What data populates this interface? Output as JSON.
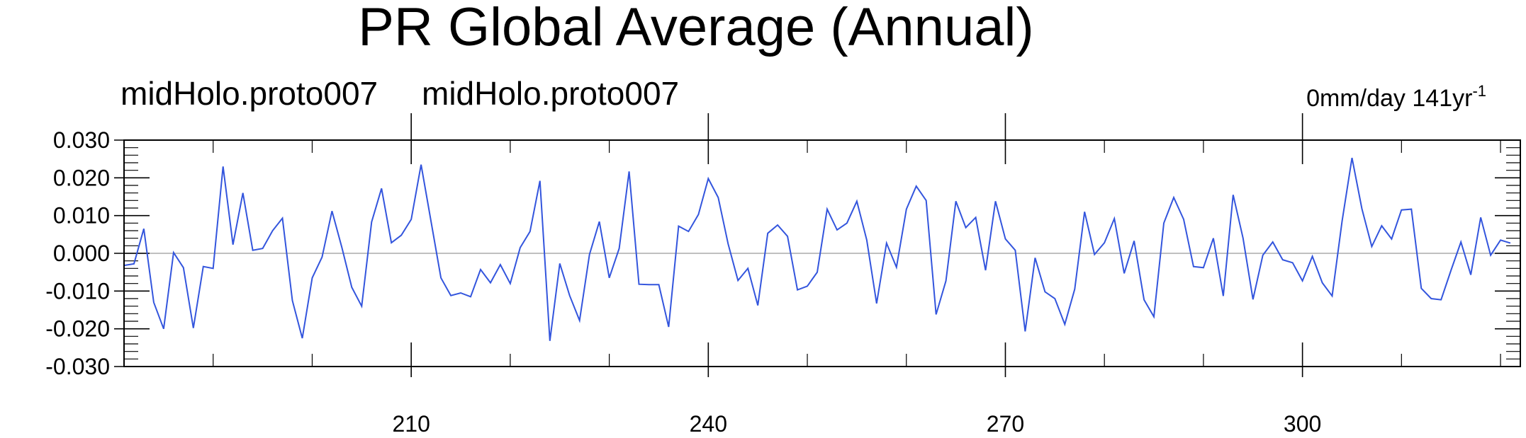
{
  "chart_data": {
    "type": "line",
    "title": "PR Global Average (Annual)",
    "left_subtitle": "midHolo.proto007",
    "center_subtitle": "midHolo.proto007",
    "right_label": "0mm/day 141yr",
    "right_label_sup": "-1",
    "xlim": [
      181,
      322
    ],
    "ylim": [
      -0.03,
      0.03
    ],
    "x_ticks": [
      210,
      240,
      270,
      300
    ],
    "x_tick_labels": [
      "210",
      "240",
      "270",
      "300"
    ],
    "x_minor_ticks": [
      190,
      200,
      220,
      230,
      250,
      260,
      280,
      290,
      310,
      320
    ],
    "y_ticks": [
      -0.03,
      -0.02,
      -0.01,
      0.0,
      0.01,
      0.02,
      0.03
    ],
    "y_tick_labels": [
      "-0.030",
      "-0.020",
      "-0.010",
      "0.000",
      "0.010",
      "0.020",
      "0.030"
    ],
    "reference_line": 0.0,
    "line_color": "#3355dd",
    "reference_color": "#c0c0c0",
    "series": [
      {
        "x_start": 181,
        "values": [
          -0.0032,
          -0.0028,
          0.0065,
          -0.013,
          -0.02,
          0.0002,
          -0.0038,
          -0.0198,
          -0.0035,
          -0.004,
          0.023,
          0.0023,
          0.016,
          0.0008,
          0.0013,
          0.006,
          0.0093,
          -0.0125,
          -0.0225,
          -0.0065,
          -0.001,
          0.0112,
          0.0015,
          -0.009,
          -0.014,
          0.0083,
          0.0172,
          0.0028,
          0.0048,
          0.009,
          0.0235,
          0.0085,
          -0.0065,
          -0.0112,
          -0.0105,
          -0.0115,
          -0.0043,
          -0.0078,
          -0.003,
          -0.008,
          0.0015,
          0.0058,
          0.0192,
          -0.0232,
          -0.0027,
          -0.0112,
          -0.0178,
          -0.0003,
          0.0084,
          -0.0065,
          0.0013,
          0.0217,
          -0.0082,
          -0.0083,
          -0.0083,
          -0.0195,
          0.0072,
          0.0058,
          0.0103,
          0.0198,
          0.0148,
          0.0025,
          -0.0072,
          -0.004,
          -0.0138,
          0.0053,
          0.0075,
          0.0045,
          -0.0097,
          -0.0087,
          -0.005,
          0.0117,
          0.0062,
          0.008,
          0.0138,
          0.0035,
          -0.0133,
          0.0027,
          -0.0037,
          0.0117,
          0.0178,
          0.014,
          -0.0162,
          -0.0073,
          0.0138,
          0.0068,
          0.0095,
          -0.0045,
          0.0138,
          0.0038,
          0.0008,
          -0.0207,
          -0.0012,
          -0.0102,
          -0.012,
          -0.0188,
          -0.0095,
          0.011,
          -0.0003,
          0.0028,
          0.0092,
          -0.0053,
          0.0033,
          -0.0123,
          -0.0168,
          0.008,
          0.0148,
          0.009,
          -0.0035,
          -0.0038,
          0.004,
          -0.0113,
          0.0155,
          0.004,
          -0.0122,
          -0.0005,
          0.003,
          -0.0017,
          -0.0025,
          -0.0073,
          -0.0008,
          -0.0078,
          -0.0113,
          0.0085,
          0.0253,
          0.0118,
          0.0018,
          0.0073,
          0.0038,
          0.0115,
          0.0117,
          -0.0093,
          -0.012,
          -0.0123,
          -0.0045,
          0.003,
          -0.0057,
          0.0095,
          -0.0005,
          0.0035,
          0.0027
        ]
      }
    ]
  }
}
